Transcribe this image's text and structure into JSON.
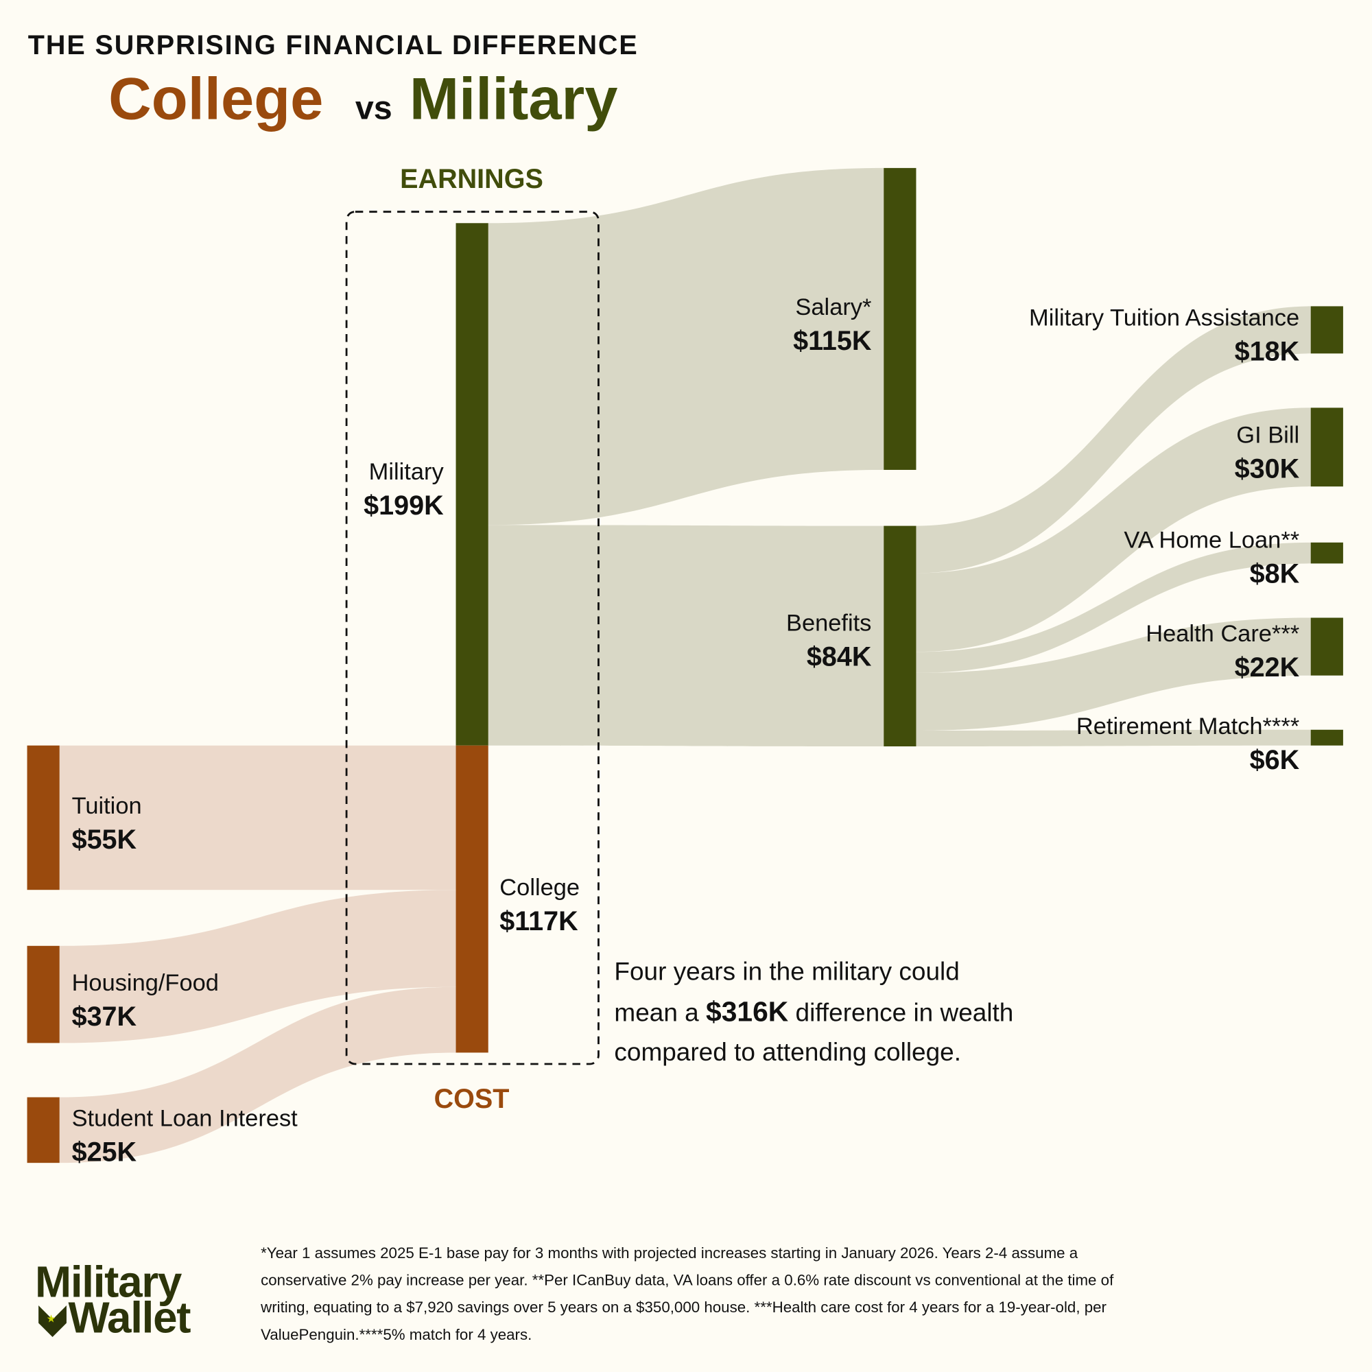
{
  "header": {
    "kicker": "THE SURPRISING FINANCIAL DIFFERENCE",
    "title_left": "College",
    "title_mid": "vs",
    "title_right": "Military"
  },
  "colors": {
    "military": "#414d0b",
    "college": "#9a4a0d",
    "military_link": "#d9d8c6",
    "college_link": "#ecd9cb",
    "background": "#fefcf4"
  },
  "sections": {
    "earnings": "EARNINGS",
    "cost": "COST"
  },
  "chart_data": {
    "type": "sankey",
    "units": "thousands USD",
    "nodes": [
      {
        "id": "military",
        "label": "Military",
        "value_label": "$199K",
        "value": 199
      },
      {
        "id": "college",
        "label": "College",
        "value_label": "$117K",
        "value": 117
      },
      {
        "id": "salary",
        "label": "Salary*",
        "value_label": "$115K",
        "value": 115
      },
      {
        "id": "benefits",
        "label": "Benefits",
        "value_label": "$84K",
        "value": 84
      },
      {
        "id": "ta",
        "label": "Military Tuition Assistance",
        "value_label": "$18K",
        "value": 18
      },
      {
        "id": "gi",
        "label": "GI Bill",
        "value_label": "$30K",
        "value": 30
      },
      {
        "id": "va",
        "label": "VA Home Loan**",
        "value_label": "$8K",
        "value": 8
      },
      {
        "id": "hc",
        "label": "Health Care***",
        "value_label": "$22K",
        "value": 22
      },
      {
        "id": "rm",
        "label": "Retirement Match****",
        "value_label": "$6K",
        "value": 6
      },
      {
        "id": "tuition",
        "label": "Tuition",
        "value_label": "$55K",
        "value": 55
      },
      {
        "id": "housing",
        "label": "Housing/Food",
        "value_label": "$37K",
        "value": 37
      },
      {
        "id": "loan",
        "label": "Student Loan Interest",
        "value_label": "$25K",
        "value": 25
      }
    ],
    "links": [
      {
        "source": "military",
        "target": "salary",
        "value": 115
      },
      {
        "source": "military",
        "target": "benefits",
        "value": 84
      },
      {
        "source": "benefits",
        "target": "ta",
        "value": 18
      },
      {
        "source": "benefits",
        "target": "gi",
        "value": 30
      },
      {
        "source": "benefits",
        "target": "va",
        "value": 8
      },
      {
        "source": "benefits",
        "target": "hc",
        "value": 22
      },
      {
        "source": "benefits",
        "target": "rm",
        "value": 6
      },
      {
        "source": "tuition",
        "target": "college",
        "value": 55
      },
      {
        "source": "housing",
        "target": "college",
        "value": 37
      },
      {
        "source": "loan",
        "target": "college",
        "value": 25
      }
    ]
  },
  "callout": {
    "line1": "Four years in the military could",
    "line2_pre": "mean a ",
    "line2_bold": "$316K",
    "line2_post": " difference in wealth",
    "line3": "compared to attending college."
  },
  "footnote": {
    "line1": "*Year 1 assumes 2025 E-1 base pay for 3 months with projected increases starting in January 2026. Years 2-4 assume a",
    "line2": "conservative 2% pay increase per year. **Per ICanBuy data, VA loans offer a 0.6% rate discount vs conventional at the time of",
    "line3": "writing, equating to a $7,920 savings over 5 years on a $350,000 house. ***Health care cost for 4 years for a 19-year-old, per",
    "line4": "ValuePenguin.****5% match for 4 years."
  },
  "logo": {
    "line1": "Military",
    "line2": "Wallet"
  }
}
